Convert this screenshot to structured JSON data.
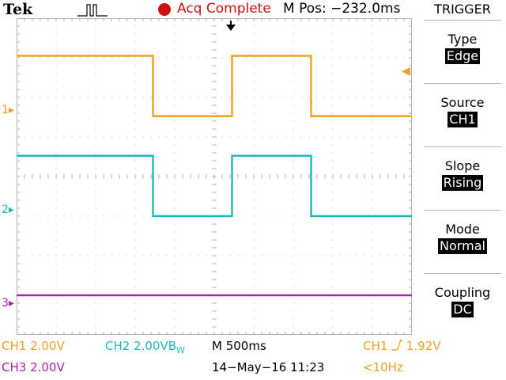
{
  "header": {
    "brand": "Tek",
    "trigger_status_icon": "trigger-pulse-icon",
    "acq_status": "Acq Complete",
    "mpos": "M Pos: −232.0ms"
  },
  "menu": {
    "title": "TRIGGER",
    "items": [
      {
        "label": "Type",
        "value": "Edge"
      },
      {
        "label": "Source",
        "value": "CH1"
      },
      {
        "label": "Slope",
        "value": "Rising"
      },
      {
        "label": "Mode",
        "value": "Normal"
      },
      {
        "label": "Coupling",
        "value": "DC"
      }
    ]
  },
  "channels": {
    "ch1_marker": "1",
    "ch2_marker": "2",
    "ch3_marker": "3"
  },
  "status": {
    "ch1_scale": "CH1  2.00V",
    "ch2_scale": "CH2  2.00VB",
    "ch2_bw": "W",
    "timebase": "M 500ms",
    "trigger_readout_src": "CH1",
    "trigger_readout_slope_icon": "rising-edge-icon",
    "trigger_readout_level": "1.92V",
    "ch3_scale": "CH3  2.00V",
    "datetime": "14−May−16 11:23",
    "frequency": "<10Hz"
  },
  "colors": {
    "ch1": "#f0a020",
    "ch2": "#20b8c0",
    "ch3": "#b020b0",
    "acq": "#cc1111",
    "grid": "#b0b0b0"
  },
  "display": {
    "divisions_x": 10,
    "divisions_y": 8,
    "time_per_div_ms": 500,
    "waveforms": [
      {
        "channel": "CH1",
        "high_v": 6.1,
        "low_v": 3.05,
        "edges_div": [
          3.45,
          5.45,
          7.45
        ],
        "start_level": "high"
      },
      {
        "channel": "CH2",
        "high_v": 1.05,
        "low_v": -2.0,
        "edges_div": [
          3.45,
          5.45,
          7.45
        ],
        "start_level": "high"
      },
      {
        "channel": "CH3",
        "high_v": -6.0,
        "low_v": -6.0,
        "edges_div": [],
        "start_level": "high"
      }
    ]
  }
}
